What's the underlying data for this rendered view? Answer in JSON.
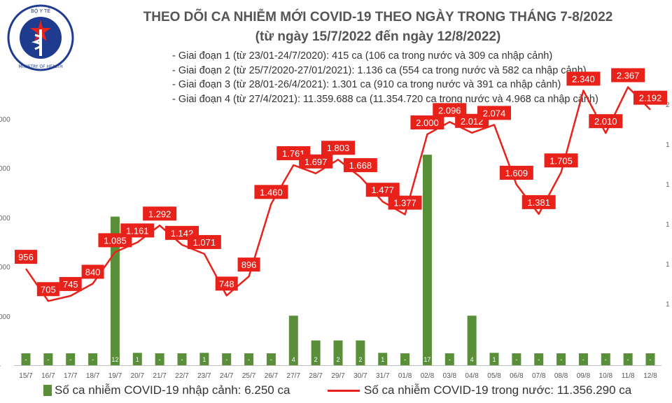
{
  "header": {
    "logo_text": "BỘ Y TẾ · MINISTRY OF HEALTH",
    "title": "THEO DÕI CA NHIỄM MỚI COVID-19 THEO NGÀY TRONG THÁNG 7-8/2022",
    "subtitle": "(từ ngày 15/7/2022 đến ngày 12/8/2022)",
    "notes": [
      "- Giai đoạn 1 (từ 23/01-24/7/2020): 415 ca (106 ca trong nước và 309 ca nhập cảnh)",
      "- Giai đoạn 2 (từ 25/7/2020-27/01/2021): 1.136 ca (554 ca trong nước và 582 ca nhập cảnh)",
      "- Giai đoạn 3 (từ 28/01-26/4/2021): 1.301 ca (910 ca trong nước và 391 ca nhập cảnh)",
      "- Giai đoạn 4 (từ 27/4/2021): 11.359.688 ca (11.354.720 ca trong nước và 4.968 ca nhập cảnh)"
    ]
  },
  "colors": {
    "bar": "#5a8f3a",
    "line": "#e8221b",
    "label_bg": "#e8221b",
    "label_text": "#ffffff"
  },
  "legend": {
    "bar_label": "Số ca nhiễm COVID-19 nhập cảnh: 6.250 ca",
    "line_label": "Số ca nhiễm COVID-19 trong nước: 11.356.290 ca"
  },
  "chart_data": {
    "type": "bar+line",
    "categories": [
      "15/7",
      "16/7",
      "17/7",
      "18/7",
      "19/7",
      "20/7",
      "21/7",
      "22/7",
      "23/7",
      "24/7",
      "25/7",
      "26/7",
      "27/7",
      "28/7",
      "29/7",
      "30/7",
      "31/7",
      "01/8",
      "02/8",
      "03/8",
      "04/8",
      "05/8",
      "06/8",
      "07/8",
      "08/8",
      "09/8",
      "10/8",
      "11/8",
      "12/8"
    ],
    "series": [
      {
        "name": "Số ca nhiễm COVID-19 nhập cảnh: 6.250 ca",
        "kind": "bar",
        "values": [
          0,
          0,
          0,
          0,
          12,
          1,
          0,
          0,
          1,
          0,
          0,
          0,
          4,
          2,
          2,
          2,
          1,
          0,
          17,
          0,
          4,
          1,
          0,
          0,
          0,
          0,
          0,
          0,
          0
        ],
        "labels": [
          "-",
          "-",
          "-",
          "-",
          "12",
          "1",
          "-",
          "-",
          "1",
          "-",
          "-",
          "-",
          "4",
          "2",
          "2",
          "2",
          "1",
          "-",
          "17",
          "-",
          "4",
          "1",
          "-",
          "-",
          "-",
          "-",
          "-",
          "-",
          "-"
        ]
      },
      {
        "name": "Số ca nhiễm COVID-19 trong nước: 11.356.290 ca",
        "kind": "line",
        "values": [
          956,
          705,
          745,
          840,
          1085,
          1161,
          1292,
          1142,
          1071,
          748,
          896,
          1460,
          1761,
          1697,
          1803,
          1668,
          1477,
          1377,
          2000,
          2096,
          2012,
          2074,
          1609,
          1381,
          1705,
          2340,
          2010,
          2367,
          2192
        ],
        "labels": [
          "956",
          "705",
          "745",
          "840",
          "1.085",
          "1.161",
          "1.292",
          "1.142",
          "1.071",
          "748",
          "896",
          "1.460",
          "1.761",
          "1.697",
          "1.803",
          "1.668",
          "1.477",
          "1.377",
          "2.000",
          "2.096",
          "2.012",
          "2.074",
          "1.609",
          "1.381",
          "1.705",
          "2.340",
          "2.010",
          "2.367",
          "2.192"
        ]
      }
    ],
    "left_axis_tick_labels": [
      "000",
      "000",
      "000",
      "000",
      "000",
      "-"
    ],
    "right_axis_tick_labels": [
      "2",
      "1",
      "1",
      "1",
      "1",
      "1",
      "",
      "",
      "",
      ""
    ]
  }
}
